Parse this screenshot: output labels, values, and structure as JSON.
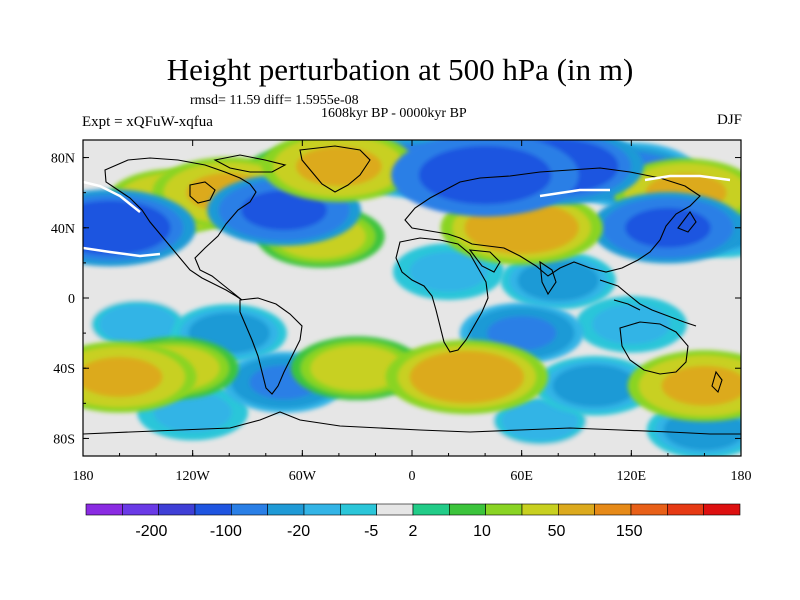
{
  "chart_data": {
    "type": "heatmap",
    "title": "Height perturbation at 500 hPa (in m)",
    "stats": "rmsd= 11.59 diff= 1.5955e-08",
    "period": "1608kyr BP - 0000kyr BP",
    "experiment": "Expt = xQFuW-xqfua",
    "season": "DJF",
    "x_ticks": [
      "180",
      "120W",
      "60W",
      "0",
      "60E",
      "120E",
      "180"
    ],
    "y_ticks": [
      "80N",
      "40N",
      "0",
      "40S",
      "80S"
    ],
    "x_tick_values": [
      -180,
      -120,
      -60,
      0,
      60,
      120,
      180
    ],
    "y_tick_values": [
      80,
      40,
      0,
      -40,
      -80
    ],
    "xlim": [
      -180,
      180
    ],
    "ylim": [
      -90,
      90
    ],
    "colorbar_labels": [
      "-200",
      "-100",
      "-20",
      "-5",
      "2",
      "10",
      "50",
      "150"
    ],
    "colorbar_colors": [
      "#8a2be2",
      "#6a3ae6",
      "#3f3fd6",
      "#1f55e0",
      "#2a7fe6",
      "#1f9ad6",
      "#33b4e6",
      "#2bc6d9",
      "#e6e6e6",
      "#22cc88",
      "#3cc43c",
      "#8ad424",
      "#c8d020",
      "#dcaa1e",
      "#e68a18",
      "#e86018",
      "#e63a14",
      "#dd1010"
    ],
    "features": [
      {
        "lon": -165,
        "lat": 40,
        "value": -80
      },
      {
        "lon": -130,
        "lat": 55,
        "value": 40
      },
      {
        "lon": -100,
        "lat": 60,
        "value": 60
      },
      {
        "lon": -70,
        "lat": 50,
        "value": -60
      },
      {
        "lon": -60,
        "lat": 70,
        "value": 20
      },
      {
        "lon": -40,
        "lat": 75,
        "value": 60
      },
      {
        "lon": -50,
        "lat": 35,
        "value": 30
      },
      {
        "lon": 0,
        "lat": 75,
        "value": -30
      },
      {
        "lon": 40,
        "lat": 70,
        "value": -100
      },
      {
        "lon": 80,
        "lat": 75,
        "value": -80
      },
      {
        "lon": 60,
        "lat": 40,
        "value": 70
      },
      {
        "lon": 120,
        "lat": 70,
        "value": -40
      },
      {
        "lon": 150,
        "lat": 60,
        "value": 50
      },
      {
        "lon": 140,
        "lat": 40,
        "value": -60
      },
      {
        "lon": 170,
        "lat": 40,
        "value": -20
      },
      {
        "lon": 20,
        "lat": 15,
        "value": -10
      },
      {
        "lon": 80,
        "lat": 10,
        "value": -15
      },
      {
        "lon": -150,
        "lat": -15,
        "value": -8
      },
      {
        "lon": -100,
        "lat": -20,
        "value": -15
      },
      {
        "lon": 60,
        "lat": -20,
        "value": -25
      },
      {
        "lon": 120,
        "lat": -15,
        "value": -10
      },
      {
        "lon": -160,
        "lat": -45,
        "value": 60
      },
      {
        "lon": -130,
        "lat": -40,
        "value": 30
      },
      {
        "lon": -70,
        "lat": -48,
        "value": -25
      },
      {
        "lon": -30,
        "lat": -40,
        "value": 35
      },
      {
        "lon": 30,
        "lat": -45,
        "value": 70
      },
      {
        "lon": 100,
        "lat": -50,
        "value": -20
      },
      {
        "lon": 160,
        "lat": -50,
        "value": 60
      },
      {
        "lon": -120,
        "lat": -65,
        "value": -10
      },
      {
        "lon": 70,
        "lat": -70,
        "value": -8
      },
      {
        "lon": 160,
        "lat": -75,
        "value": -15
      }
    ]
  }
}
